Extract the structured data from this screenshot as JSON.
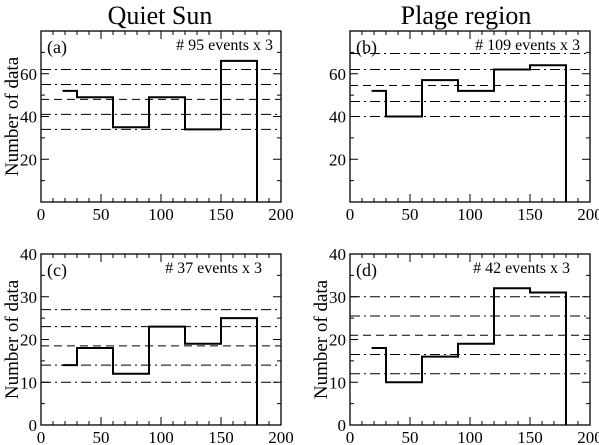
{
  "column_titles": [
    "Quiet Sun",
    "Plage region"
  ],
  "chart_data": [
    {
      "type": "histogram-step",
      "panel": "(a)",
      "annotation": "# 95 events x 3",
      "ylabel": "Number of data",
      "xlim": [
        0,
        200
      ],
      "ylim": [
        0,
        80
      ],
      "xticks": [
        0,
        50,
        100,
        150,
        200
      ],
      "yticks": [
        20,
        40,
        60
      ],
      "bin_edges": [
        18,
        30,
        60,
        90,
        120,
        150,
        180
      ],
      "values": [
        52,
        49,
        35,
        49,
        34,
        66
      ],
      "reference_lines": {
        "dashed": [
          48
        ],
        "dashdot": [
          34,
          41,
          55,
          62
        ]
      }
    },
    {
      "type": "histogram-step",
      "panel": "(b)",
      "annotation": "# 109 events x 3",
      "ylabel": "",
      "xlim": [
        0,
        200
      ],
      "ylim": [
        0,
        80
      ],
      "xticks": [
        0,
        50,
        100,
        150,
        200
      ],
      "yticks": [
        20,
        40,
        60
      ],
      "bin_edges": [
        18,
        30,
        60,
        90,
        120,
        150,
        180
      ],
      "values": [
        52,
        40,
        57,
        52,
        62,
        64
      ],
      "reference_lines": {
        "dashed": [
          54.5
        ],
        "dashdot": [
          40,
          47,
          62,
          69.5
        ]
      }
    },
    {
      "type": "histogram-step",
      "panel": "(c)",
      "annotation": "# 37 events x 3",
      "ylabel": "Number of data",
      "xlim": [
        0,
        200
      ],
      "ylim": [
        0,
        40
      ],
      "xticks": [
        0,
        50,
        100,
        150,
        200
      ],
      "yticks": [
        0,
        10,
        20,
        30,
        40
      ],
      "bin_edges": [
        18,
        30,
        60,
        90,
        120,
        150,
        180
      ],
      "values": [
        14,
        18,
        12,
        23,
        19,
        25
      ],
      "reference_lines": {
        "dashed": [
          18.5
        ],
        "dashdot": [
          10,
          14,
          23,
          27
        ]
      }
    },
    {
      "type": "histogram-step",
      "panel": "(d)",
      "annotation": "# 42 events x 3",
      "ylabel": "Number of data",
      "xlim": [
        0,
        200
      ],
      "ylim": [
        0,
        40
      ],
      "xticks": [
        0,
        50,
        100,
        150,
        200
      ],
      "yticks": [
        0,
        10,
        20,
        30,
        40
      ],
      "bin_edges": [
        18,
        30,
        60,
        90,
        120,
        150,
        180
      ],
      "values": [
        18,
        10,
        16,
        19,
        32,
        31
      ],
      "reference_lines": {
        "dashed": [
          21
        ],
        "dashdot": [
          12,
          16.5,
          25.5,
          30
        ]
      }
    }
  ]
}
